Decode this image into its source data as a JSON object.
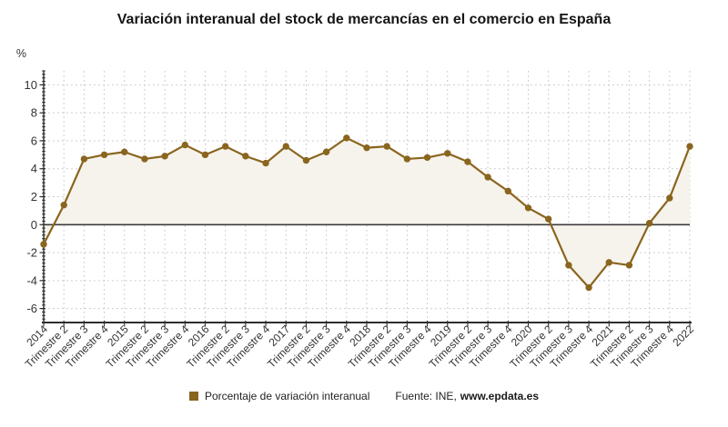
{
  "chart_data": {
    "type": "line",
    "title": "Variación interanual del stock de mercancías en el comercio en España",
    "ylabel": "%",
    "xlabel": "",
    "categories": [
      "2014",
      "Trimestre 2",
      "Trimestre 3",
      "Trimestre 4",
      "2015",
      "Trimestre 2",
      "Trimestre 3",
      "Trimestre 4",
      "2016",
      "Trimestre 2",
      "Trimestre 3",
      "Trimestre 4",
      "2017",
      "Trimestre 2",
      "Trimestre 3",
      "Trimestre 4",
      "2018",
      "Trimestre 2",
      "Trimestre 3",
      "Trimestre 4",
      "2019",
      "Trimestre 2",
      "Trimestre 3",
      "Trimestre 4",
      "2020",
      "Trimestre 2",
      "Trimestre 3",
      "Trimestre 4",
      "2021",
      "Trimestre 2",
      "Trimestre 3",
      "Trimestre 4",
      "2022"
    ],
    "series": [
      {
        "name": "Porcentaje de variación interanual",
        "values": [
          -1.4,
          1.4,
          4.7,
          5.0,
          5.2,
          4.7,
          4.9,
          5.7,
          5.0,
          5.6,
          4.9,
          4.4,
          5.6,
          4.6,
          5.2,
          6.2,
          5.5,
          5.6,
          4.7,
          4.8,
          5.1,
          4.5,
          3.4,
          2.4,
          1.2,
          0.4,
          -2.9,
          -4.5,
          -2.7,
          -2.9,
          0.1,
          1.9,
          5.6
        ]
      }
    ],
    "yticks": [
      10,
      8,
      6,
      4,
      2,
      0,
      -2,
      -4,
      -6
    ],
    "ylim": [
      -7,
      11
    ],
    "grid": true,
    "legend_position": "bottom",
    "source": {
      "prefix": "Fuente: INE,",
      "link": "www.epdata.es"
    },
    "colors": {
      "line": "#8a651e",
      "marker": "#8a651e",
      "area_fill": "#f6f3ec",
      "zero_line": "#3d3d3d",
      "grid": "#c9c9c9",
      "axis": "#2e2e2e",
      "text": "#333333",
      "title": "#151515"
    }
  }
}
